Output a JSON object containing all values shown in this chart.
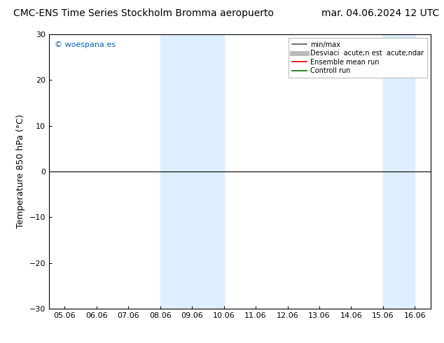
{
  "title_left": "CMC-ENS Time Series Stockholm Bromma aeropuerto",
  "title_right": "mar. 04.06.2024 12 UTC",
  "ylabel": "Temperature 850 hPa (°C)",
  "watermark": "© woespana.es",
  "x_labels": [
    "05.06",
    "06.06",
    "07.06",
    "08.06",
    "09.06",
    "10.06",
    "11.06",
    "12.06",
    "13.06",
    "14.06",
    "15.06",
    "16.06"
  ],
  "x_values": [
    0,
    1,
    2,
    3,
    4,
    5,
    6,
    7,
    8,
    9,
    10,
    11
  ],
  "ylim": [
    -30,
    30
  ],
  "yticks": [
    -30,
    -20,
    -10,
    0,
    10,
    20,
    30
  ],
  "shaded_regions": [
    {
      "xmin": 3,
      "xmax": 5
    },
    {
      "xmin": 10,
      "xmax": 11
    }
  ],
  "shade_color": "#ddeeff",
  "bg_color": "#ffffff",
  "hline_y": 0,
  "hline_color": "#000000",
  "spine_color": "#000000",
  "tick_color": "#000000",
  "title_fontsize": 10,
  "label_fontsize": 9,
  "tick_fontsize": 8,
  "watermark_color": "#0066bb",
  "legend_dark_gray": "#555555",
  "legend_light_gray": "#bbbbbb",
  "legend_red": "#dd0000",
  "legend_green": "#007700"
}
